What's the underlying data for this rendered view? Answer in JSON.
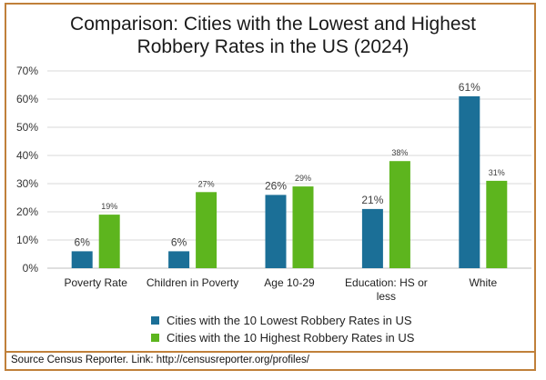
{
  "chart_data": {
    "type": "bar",
    "title_line1": "Comparison: Cities with the Lowest and Highest",
    "title_line2": "Robbery Rates in the US (2024)",
    "categories": [
      "Poverty Rate",
      "Children in Poverty",
      "Age 10-29",
      "Education: HS or less",
      "White"
    ],
    "category_lines": [
      [
        "Poverty Rate"
      ],
      [
        "Children in Poverty"
      ],
      [
        "Age 10-29"
      ],
      [
        "Education: HS or",
        "less"
      ],
      [
        "White"
      ]
    ],
    "series": [
      {
        "name": "Cities with the 10 Lowest Robbery Rates in US",
        "color": "#1b6f97",
        "values": [
          6,
          6,
          26,
          21,
          61
        ],
        "labels": [
          "6%",
          "6%",
          "26%",
          "21%",
          "61%"
        ]
      },
      {
        "name": "Cities with the 10 Highest Robbery Rates in US",
        "color": "#5db51e",
        "values": [
          19,
          27,
          29,
          38,
          31
        ],
        "labels": [
          "19%",
          "27%",
          "29%",
          "38%",
          "31%"
        ]
      }
    ],
    "ylim": [
      0,
      70
    ],
    "yticks": [
      0,
      10,
      20,
      30,
      40,
      50,
      60,
      70
    ],
    "ytick_labels": [
      "0%",
      "10%",
      "20%",
      "30%",
      "40%",
      "50%",
      "60%",
      "70%"
    ],
    "grid": true,
    "legend": "bottom"
  },
  "source": "Source Census Reporter. Link: http://censusreporter.org/profiles/"
}
